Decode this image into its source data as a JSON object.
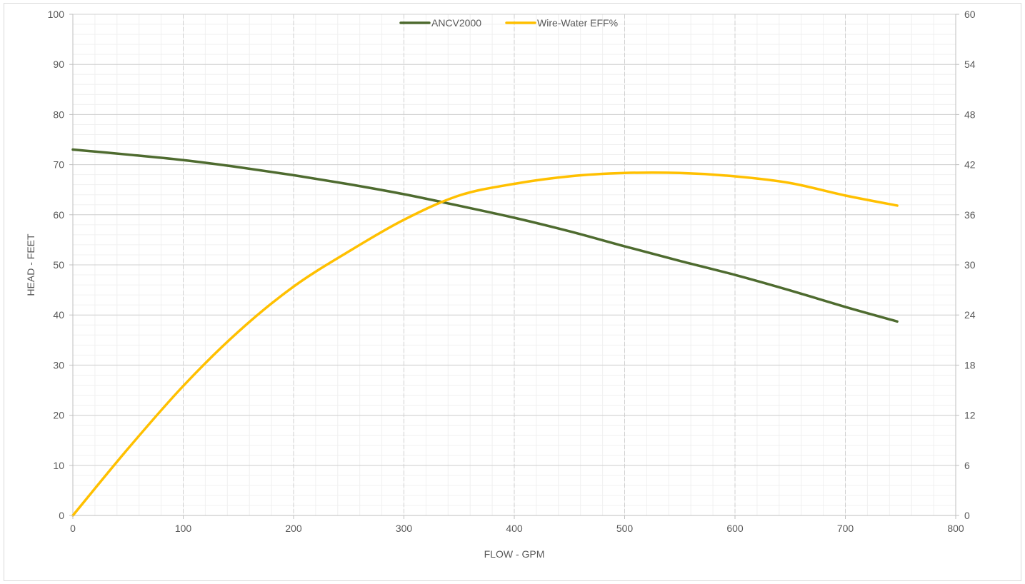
{
  "chart_data": {
    "type": "line",
    "title": "",
    "xlabel": "FLOW - GPM",
    "ylabel": "HEAD - FEET",
    "y2label": "",
    "xlim": [
      0,
      800
    ],
    "ylim": [
      0,
      100
    ],
    "y2lim": [
      0,
      60
    ],
    "x_ticks": [
      0,
      100,
      200,
      300,
      400,
      500,
      600,
      700,
      800
    ],
    "y_ticks": [
      0,
      10,
      20,
      30,
      40,
      50,
      60,
      70,
      80,
      90,
      100
    ],
    "y2_ticks": [
      0,
      6,
      12,
      18,
      24,
      30,
      36,
      42,
      48,
      54,
      60
    ],
    "grid": true,
    "legend": "top-center",
    "series": [
      {
        "name": "ANCV2000",
        "axis": "left",
        "color": "#4e6b2f",
        "x": [
          0,
          50,
          100,
          150,
          200,
          250,
          300,
          350,
          400,
          450,
          500,
          550,
          600,
          650,
          700,
          747
        ],
        "values": [
          73,
          72,
          70.9,
          69.5,
          67.9,
          66.1,
          64.1,
          61.8,
          59.4,
          56.7,
          53.7,
          50.8,
          48,
          44.9,
          41.6,
          38.7
        ]
      },
      {
        "name": "Wire-Water EFF%",
        "axis": "right",
        "color": "#ffc000",
        "x": [
          0,
          50,
          100,
          150,
          200,
          250,
          300,
          350,
          400,
          450,
          500,
          550,
          600,
          650,
          700,
          747
        ],
        "values": [
          0,
          8,
          15.5,
          22,
          27.4,
          31.6,
          35.4,
          38.3,
          39.7,
          40.6,
          41,
          41,
          40.6,
          39.8,
          38.3,
          37.1
        ]
      }
    ]
  }
}
